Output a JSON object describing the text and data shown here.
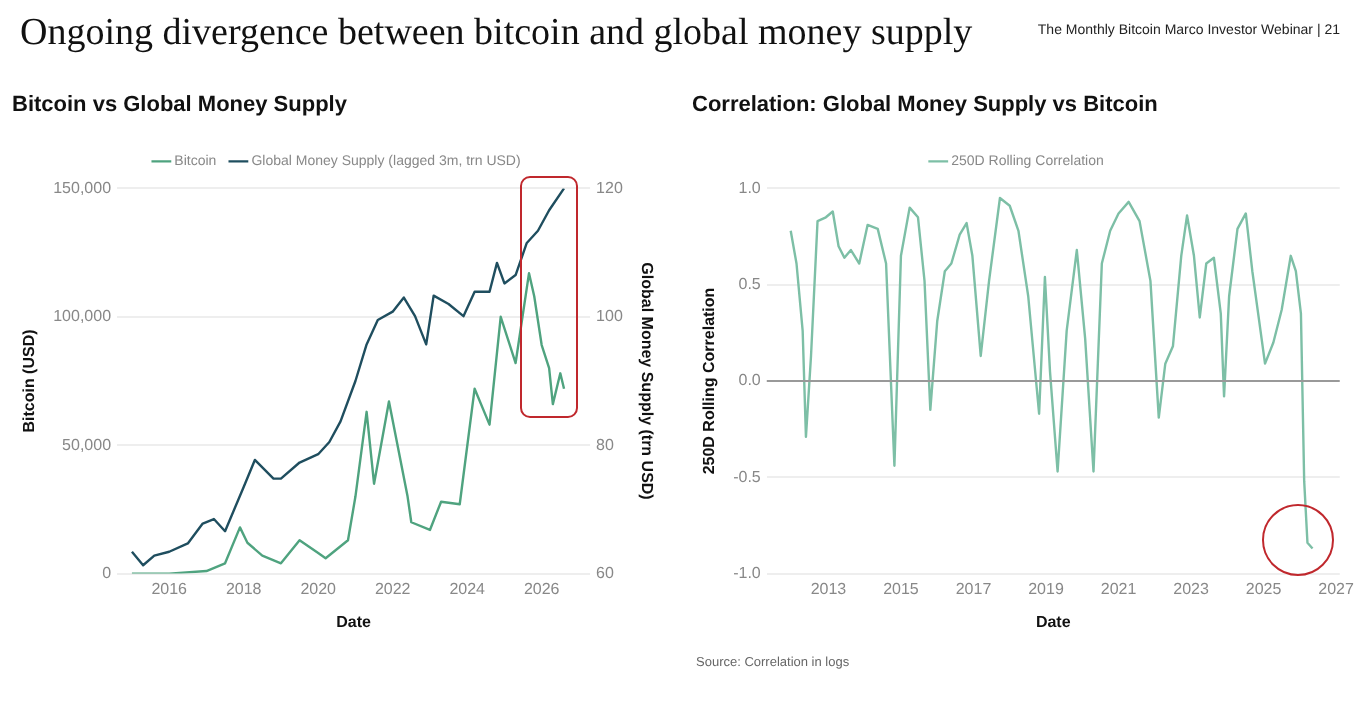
{
  "chart_data": [
    {
      "type": "other",
      "title": "Ongoing divergence between bitcoin and global money supply",
      "annotations": [
        "The Monthly Bitcoin Marco Investor Webinar | 21"
      ]
    },
    {
      "type": "line",
      "title": "Bitcoin vs Global Money Supply",
      "xlabel": "Date",
      "ylabel": "Bitcoin (USD)",
      "y2label": "Global Money Supply (trn USD)",
      "legend": "top",
      "grid": "y",
      "xlim": [
        2014.6,
        2027.3
      ],
      "xticks": [
        2016,
        2018,
        2020,
        2022,
        2024,
        2026
      ],
      "ylim": [
        0,
        150000
      ],
      "yticks": [
        0,
        {
          "value": 50000,
          "label": "50,000"
        },
        {
          "value": 100000,
          "label": "100,000"
        },
        {
          "value": 150000,
          "label": "150,000"
        }
      ],
      "y2lim": [
        60,
        120
      ],
      "y2ticks": [
        60,
        80,
        100,
        120
      ],
      "series": [
        {
          "name": "Bitcoin",
          "color": "#4fa37f",
          "x": [
            2015.0,
            2016.0,
            2017.0,
            2017.5,
            2017.9,
            2018.1,
            2018.5,
            2019.0,
            2019.5,
            2020.0,
            2020.2,
            2020.8,
            2021.0,
            2021.3,
            2021.5,
            2021.9,
            2022.4,
            2022.5,
            2023.0,
            2023.3,
            2023.8,
            2024.2,
            2024.6,
            2024.9,
            2025.3,
            2025.66,
            2025.8,
            2026.0,
            2026.2,
            2026.3,
            2026.5,
            2026.6
          ],
          "values": [
            0,
            0,
            1000,
            4000,
            18000,
            12000,
            7000,
            4000,
            13000,
            8000,
            6000,
            13000,
            30000,
            63000,
            35000,
            67000,
            30000,
            20000,
            17000,
            28000,
            27000,
            72000,
            58000,
            100000,
            82000,
            117000,
            108000,
            89000,
            80000,
            66000,
            78000,
            72000
          ]
        },
        {
          "name": "Global Money Supply (lagged 3m, trn USD)",
          "color": "#1f4e5f",
          "axis": "y2",
          "x": [
            2015.0,
            2015.3,
            2015.6,
            2016.0,
            2016.5,
            2016.9,
            2017.2,
            2017.5,
            2018.0,
            2018.3,
            2018.8,
            2019.0,
            2019.5,
            2020.0,
            2020.3,
            2020.6,
            2021.0,
            2021.3,
            2021.6,
            2022.0,
            2022.3,
            2022.6,
            2022.9,
            2023.1,
            2023.5,
            2023.9,
            2024.2,
            2024.6,
            2024.8,
            2025.0,
            2025.3,
            2025.6,
            2025.9,
            2026.2,
            2026.6
          ],
          "values": [
            63.4,
            61.3,
            62.8,
            63.4,
            64.7,
            67.8,
            68.5,
            66.6,
            73.5,
            77.7,
            74.8,
            74.8,
            77.3,
            78.6,
            80.5,
            83.7,
            90.0,
            95.7,
            99.5,
            100.8,
            103.0,
            100.1,
            95.7,
            103.3,
            102.0,
            100.1,
            103.9,
            103.9,
            108.4,
            105.2,
            106.5,
            111.5,
            113.4,
            116.6,
            120.0
          ]
        }
      ]
    },
    {
      "type": "line",
      "title": "Correlation: Global Money Supply vs Bitcoin",
      "xlabel": "Date",
      "ylabel": "250D Rolling Correlation",
      "legend": "top",
      "grid": "y",
      "xlim": [
        2011.3,
        2027.1
      ],
      "xticks": [
        2013,
        2015,
        2017,
        2019,
        2021,
        2023,
        2025,
        2027
      ],
      "ylim": [
        -1,
        1
      ],
      "yticks": [
        {
          "value": -1,
          "label": "-1.0"
        },
        {
          "value": -0.5,
          "label": "-0.5"
        },
        {
          "value": 0,
          "label": "0.0"
        },
        {
          "value": 0.5,
          "label": "0.5"
        },
        {
          "value": 1,
          "label": "1.0"
        }
      ],
      "ref_lines": [
        {
          "axis": "y",
          "value": 0,
          "color": "#999999"
        }
      ],
      "annotations": [
        "Source: Correlation in logs"
      ],
      "series": [
        {
          "name": "250D Rolling Correlation",
          "color": "#7dbfa6",
          "x": [
            2011.96,
            2012.12,
            2012.29,
            2012.38,
            2012.52,
            2012.7,
            2012.93,
            2013.12,
            2013.28,
            2013.44,
            2013.62,
            2013.85,
            2014.08,
            2014.36,
            2014.59,
            2014.82,
            2015.0,
            2015.24,
            2015.47,
            2015.65,
            2015.81,
            2016.0,
            2016.21,
            2016.39,
            2016.62,
            2016.81,
            2016.97,
            2017.2,
            2017.43,
            2017.73,
            2018.0,
            2018.24,
            2018.51,
            2018.81,
            2018.97,
            2019.11,
            2019.32,
            2019.57,
            2019.85,
            2020.08,
            2020.31,
            2020.54,
            2020.77,
            2021.0,
            2021.28,
            2021.58,
            2021.88,
            2022.11,
            2022.29,
            2022.5,
            2022.73,
            2022.89,
            2023.08,
            2023.24,
            2023.42,
            2023.63,
            2023.82,
            2023.91,
            2024.05,
            2024.28,
            2024.51,
            2024.69,
            2024.88,
            2025.04,
            2025.27,
            2025.5,
            2025.75,
            2025.89,
            2026.03,
            2026.12,
            2026.21,
            2026.35
          ],
          "values": [
            0.78,
            0.61,
            0.26,
            -0.29,
            0.13,
            0.83,
            0.85,
            0.88,
            0.7,
            0.64,
            0.68,
            0.61,
            0.81,
            0.79,
            0.61,
            -0.44,
            0.65,
            0.9,
            0.85,
            0.52,
            -0.15,
            0.31,
            0.57,
            0.61,
            0.76,
            0.82,
            0.65,
            0.13,
            0.52,
            0.95,
            0.91,
            0.78,
            0.44,
            -0.17,
            0.54,
            0.05,
            -0.47,
            0.26,
            0.68,
            0.22,
            -0.47,
            0.61,
            0.78,
            0.87,
            0.93,
            0.83,
            0.52,
            -0.19,
            0.09,
            0.18,
            0.65,
            0.86,
            0.65,
            0.33,
            0.61,
            0.64,
            0.35,
            -0.08,
            0.44,
            0.79,
            0.87,
            0.57,
            0.31,
            0.09,
            0.2,
            0.37,
            0.65,
            0.57,
            0.35,
            -0.52,
            -0.84,
            -0.87
          ]
        }
      ]
    }
  ]
}
